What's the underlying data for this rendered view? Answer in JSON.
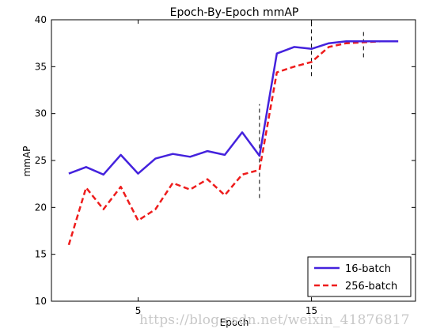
{
  "chart_data": {
    "type": "line",
    "title": "Epoch-By-Epoch mmAP",
    "xlabel": "Epoch",
    "ylabel": "mmAP",
    "xlim": [
      0,
      21
    ],
    "ylim": [
      10,
      40
    ],
    "x_ticks": [
      5,
      15
    ],
    "y_ticks": [
      10,
      15,
      20,
      25,
      30,
      35,
      40
    ],
    "grid": false,
    "legend_position": "bottom-right",
    "x": [
      1,
      2,
      3,
      4,
      5,
      6,
      7,
      8,
      9,
      10,
      11,
      12,
      13,
      14,
      15,
      16,
      17,
      18,
      19,
      20
    ],
    "series": [
      {
        "name": "16-batch",
        "color": "#4422dd",
        "style": "solid",
        "values": [
          23.6,
          24.3,
          23.5,
          25.6,
          23.6,
          25.2,
          25.7,
          25.4,
          26.0,
          25.6,
          28.0,
          25.5,
          36.4,
          37.1,
          36.9,
          37.5,
          37.7,
          37.7,
          37.7,
          37.7
        ]
      },
      {
        "name": "256-batch",
        "color": "#ee1c1c",
        "style": "dashed",
        "values": [
          16.0,
          22.1,
          19.8,
          22.2,
          18.6,
          19.8,
          22.6,
          21.9,
          23.0,
          21.3,
          23.5,
          24.0,
          34.4,
          35.0,
          35.5,
          37.1,
          37.5,
          37.6,
          37.7,
          37.7
        ]
      }
    ],
    "markers": [
      {
        "x": 12,
        "y_range": [
          21,
          31
        ]
      },
      {
        "x": 15,
        "y_range": [
          34,
          40
        ]
      },
      {
        "x": 18,
        "y_range": [
          36,
          38.7
        ]
      }
    ]
  },
  "watermark": "https://blog.csdn.net/weixin_41876817"
}
